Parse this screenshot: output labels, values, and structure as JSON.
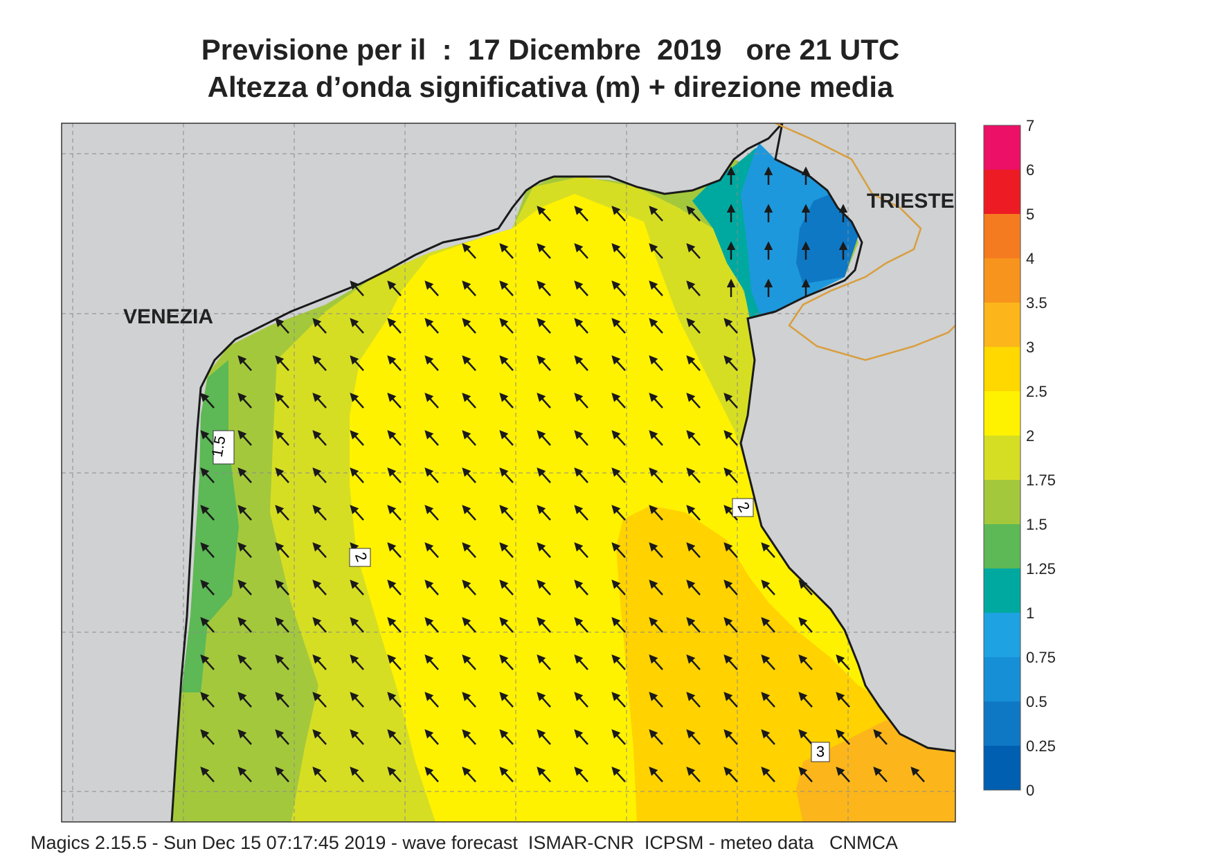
{
  "title_line1": "Previsione per il  :  17 Dicembre  2019   ore 21 UTC",
  "title_line2": "Altezza d’onda significativa (m) + direzione media",
  "places": {
    "venezia": "VENEZIA",
    "trieste": "TRIESTE"
  },
  "contour_labels": [
    "1.5",
    "2",
    "2",
    "3"
  ],
  "legend": {
    "levels": [
      "0",
      "0.25",
      "0.5",
      "0.75",
      "1",
      "1.25",
      "1.5",
      "1.75",
      "2",
      "2.5",
      "3",
      "3.5",
      "4",
      "5",
      "6",
      "7"
    ],
    "colors": [
      "#005fb0",
      "#0f78c4",
      "#178fd6",
      "#1ea2e2",
      "#00a9a0",
      "#5db856",
      "#a4c83c",
      "#d6de24",
      "#fff200",
      "#ffd800",
      "#fcb61b",
      "#f7941d",
      "#f47b20",
      "#ed1c24",
      "#ec1067"
    ]
  },
  "map_colors": {
    "land": "#cfd1d3",
    "coast": "#1a1a1a",
    "border": "#d99e3c",
    "h1_25": "#5db856",
    "h1_5": "#a4c83c",
    "h1_75": "#d6de24",
    "h2": "#fff200",
    "h2_5": "#ffd200",
    "h3": "#fcb61b",
    "h3_5": "#f7941d",
    "h_low_teal": "#00a9a0",
    "h_low_blue": "#1e98dc",
    "h_low_dark": "#0f78c4"
  },
  "arrows": {
    "direction": "NW",
    "color": "#1a1a1a"
  },
  "footer": "Magics 2.15.5 - Sun Dec 15 07:17:45 2019 - wave forecast  ISMAR-CNR  ICPSM - meteo data   CNMCA"
}
